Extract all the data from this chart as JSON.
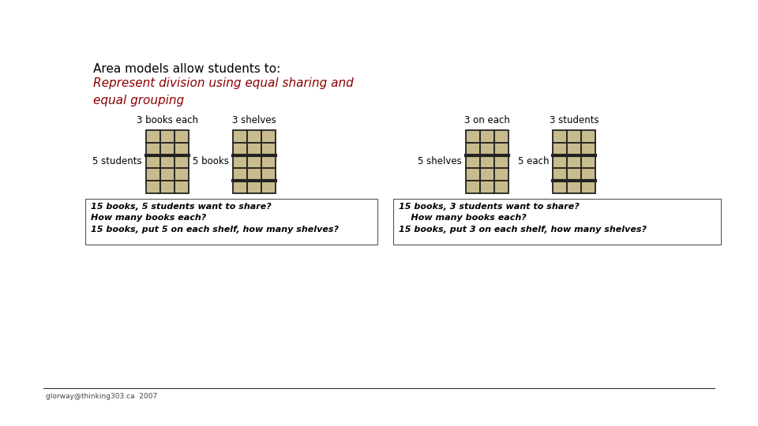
{
  "title_line1": "Area models allow students to:",
  "title_line2": "Represent division using equal sharing and\nequal grouping",
  "title_color": "#000000",
  "subtitle_color": "#8b0000",
  "bg_color": "#ffffff",
  "cell_fill": "#c8bc8e",
  "cell_edge": "#222222",
  "footer_text": "glorway@thinking303.ca  2007",
  "left_label_above1": "3 books each",
  "left_label_side1": "5 students",
  "left_label_mid": "5 books",
  "left_label_above2": "3 shelves",
  "left_box_text": "15 books, 5 students want to share?\nHow many books each?\n15 books, put 5 on each shelf, how many shelves?",
  "right_label_above1": "3 on each",
  "right_label_side1": "5 shelves",
  "right_label_mid": "5 each",
  "right_label_above2": "3 students",
  "right_box_text": "15 books, 3 students want to share?\n    How many books each?\n15 books, put 3 on each shelf, how many shelves?"
}
